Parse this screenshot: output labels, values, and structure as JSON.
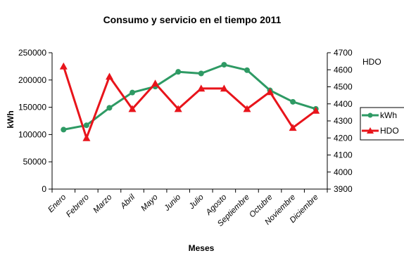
{
  "chart_data": {
    "type": "line",
    "title": "Consumo y servicio en el tiempo 2011",
    "xlabel": "Meses",
    "ylabel": "kWh",
    "y2label": "HDO",
    "categories": [
      "Enero",
      "Febrero",
      "Marzo",
      "Abril",
      "Mayo",
      "Junio",
      "Julio",
      "Agosto",
      "Septiembre",
      "Octubre",
      "Noviembre",
      "Diciembre"
    ],
    "ylim": [
      0,
      250000
    ],
    "y_ticks": [
      "0",
      "50000",
      "100000",
      "150000",
      "200000",
      "250000"
    ],
    "y2lim": [
      3900,
      4700
    ],
    "y2_ticks": [
      "3900",
      "4000",
      "4100",
      "4200",
      "4300",
      "4400",
      "4500",
      "4600",
      "4700"
    ],
    "grid": false,
    "legend_position": "right",
    "series": [
      {
        "name": "kWh",
        "axis": "left",
        "marker": "circle",
        "color": "#2e9a64",
        "values": [
          109000,
          117000,
          149000,
          177000,
          188000,
          215000,
          212000,
          228000,
          218000,
          181000,
          160000,
          147000
        ]
      },
      {
        "name": "HDO",
        "axis": "right",
        "marker": "triangle",
        "color": "#e8141b",
        "values": [
          4620,
          4200,
          4560,
          4370,
          4520,
          4370,
          4490,
          4490,
          4370,
          4470,
          4260,
          4360
        ]
      }
    ]
  }
}
